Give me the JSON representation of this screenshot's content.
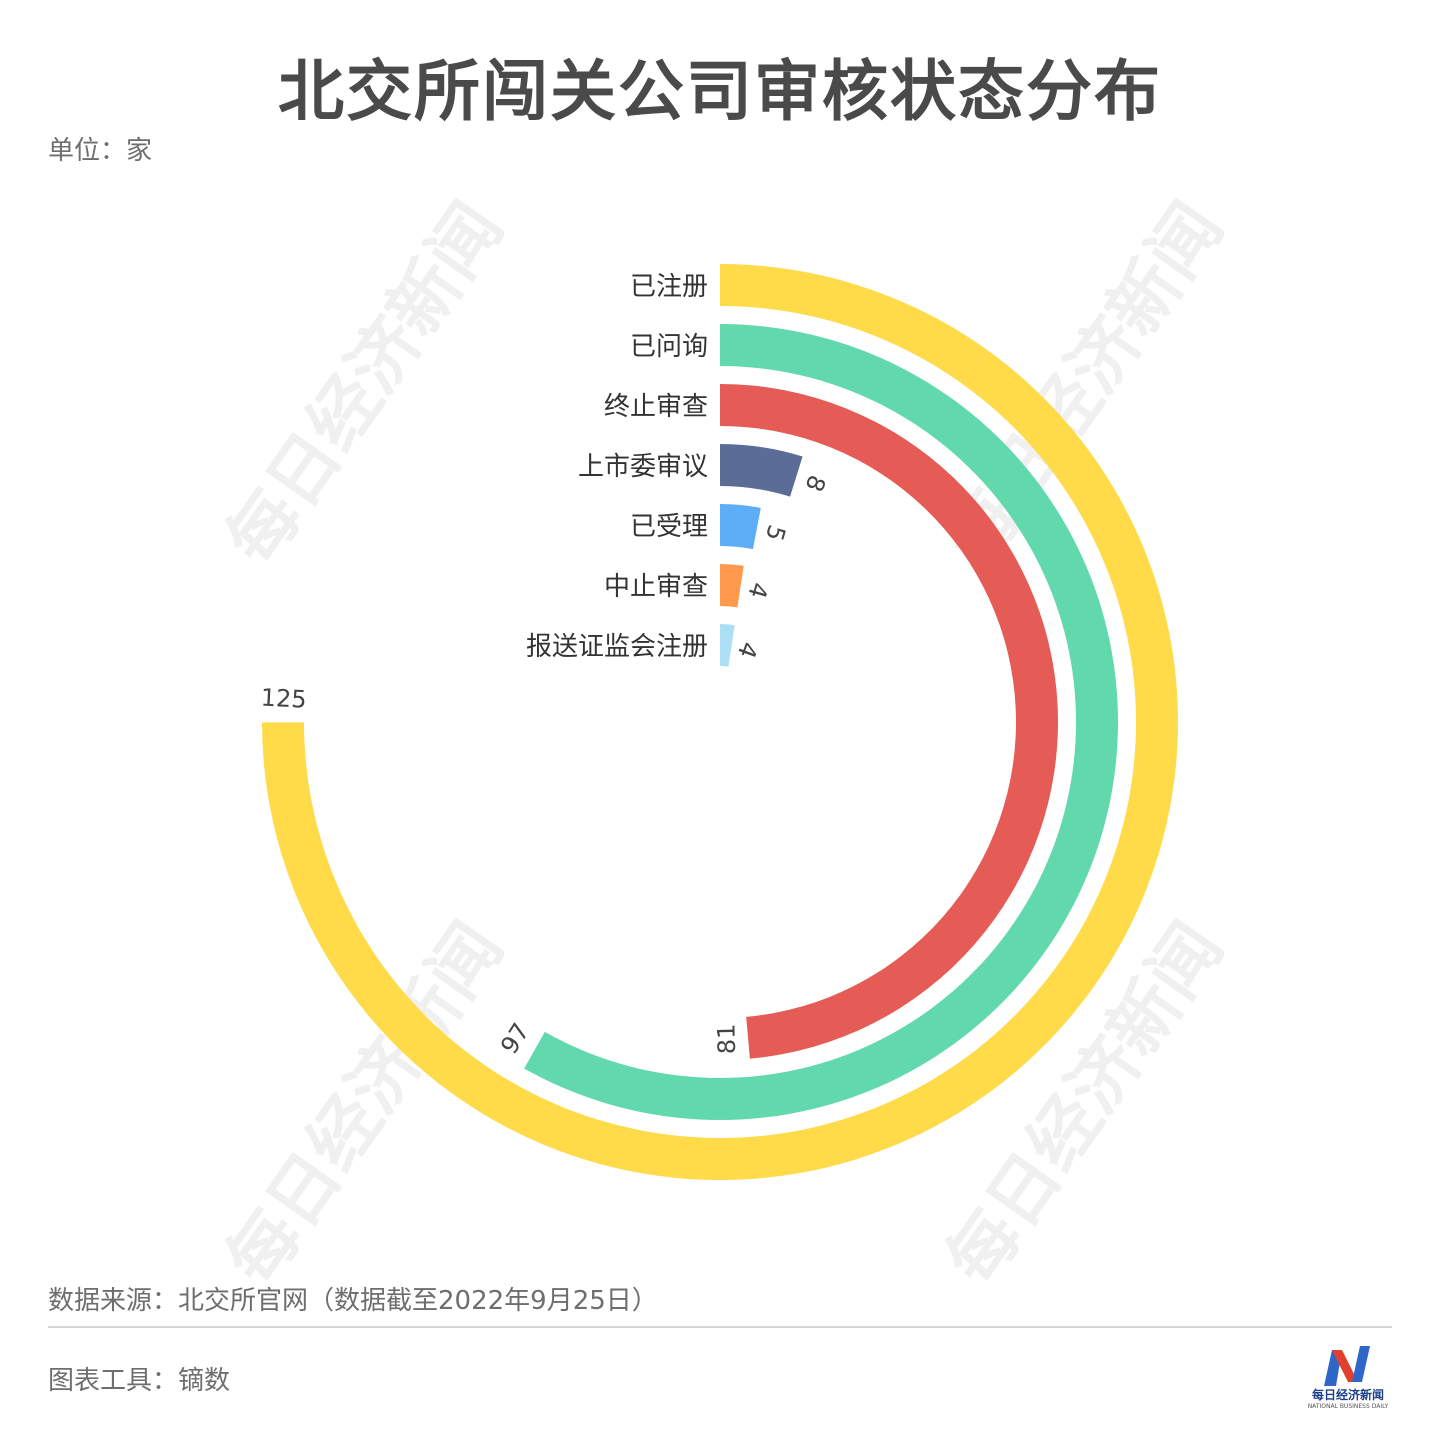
{
  "header": {
    "title": "北交所闯关公司审核状态分布",
    "unit": "单位：家"
  },
  "watermark": "每日经济新闻",
  "footer": {
    "source": "数据来源：北交所官网（数据截至2022年9月25日）",
    "tool": "图表工具：镝数",
    "logo_cn": "每日经济新闻",
    "logo_en": "NATIONAL BUSINESS DAILY"
  },
  "chart_data": {
    "type": "radial-bar",
    "title": "北交所闯关公司审核状态分布",
    "unit": "家",
    "max": 166.7,
    "categories": [
      "已注册",
      "已问询",
      "终止审查",
      "上市委审议",
      "已受理",
      "中止审查",
      "报送证监会注册"
    ],
    "values": [
      125,
      97,
      81,
      8,
      5,
      4,
      4
    ],
    "colors": [
      "#FFDB4A",
      "#62D9AD",
      "#E55B55",
      "#5B6D96",
      "#5CAEF7",
      "#FF9A4D",
      "#ADDFF4"
    ]
  }
}
